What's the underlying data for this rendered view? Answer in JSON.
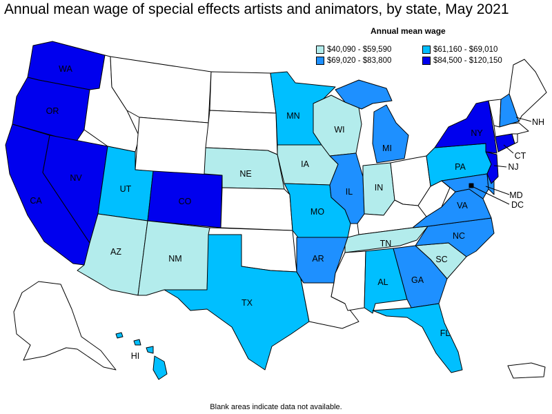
{
  "title": "Annual mean wage of special effects artists and animators, by state, May 2021",
  "legend": {
    "title": "Annual mean wage",
    "items": [
      {
        "label": "$40,090 - $59,590",
        "color": "#b3ecec"
      },
      {
        "label": "$61,160 - $69,010",
        "color": "#00bfff"
      },
      {
        "label": "$69,020 - $83,800",
        "color": "#1e90ff"
      },
      {
        "label": "$84,500 - $120,150",
        "color": "#0000ee"
      }
    ]
  },
  "footnote": "Blank areas indicate data not available.",
  "states": {
    "WA": {
      "tier": 3
    },
    "OR": {
      "tier": 3
    },
    "CA": {
      "tier": 3
    },
    "NV": {
      "tier": 3
    },
    "ID": {
      "tier": null
    },
    "MT": {
      "tier": null
    },
    "WY": {
      "tier": null
    },
    "UT": {
      "tier": 1
    },
    "CO": {
      "tier": 3
    },
    "AZ": {
      "tier": 0
    },
    "NM": {
      "tier": 0
    },
    "ND": {
      "tier": null
    },
    "SD": {
      "tier": null
    },
    "NE": {
      "tier": 0
    },
    "KS": {
      "tier": null
    },
    "OK": {
      "tier": null
    },
    "TX": {
      "tier": 1
    },
    "MN": {
      "tier": 1
    },
    "IA": {
      "tier": 0
    },
    "MO": {
      "tier": 1
    },
    "AR": {
      "tier": 2
    },
    "LA": {
      "tier": null
    },
    "WI": {
      "tier": 0
    },
    "IL": {
      "tier": 2
    },
    "MI": {
      "tier": 2
    },
    "IN": {
      "tier": 0
    },
    "OH": {
      "tier": null
    },
    "KY": {
      "tier": null
    },
    "TN": {
      "tier": 0
    },
    "MS": {
      "tier": null
    },
    "AL": {
      "tier": 1
    },
    "GA": {
      "tier": 2
    },
    "FL": {
      "tier": 1
    },
    "SC": {
      "tier": 0
    },
    "NC": {
      "tier": 2
    },
    "VA": {
      "tier": 2
    },
    "WV": {
      "tier": null
    },
    "PA": {
      "tier": 1
    },
    "NY": {
      "tier": 3
    },
    "NJ": {
      "tier": 3
    },
    "DE": {
      "tier": 2
    },
    "MD": {
      "tier": 2
    },
    "DC": {
      "tier": 3
    },
    "CT": {
      "tier": 3
    },
    "RI": {
      "tier": null
    },
    "MA": {
      "tier": null
    },
    "VT": {
      "tier": null
    },
    "NH": {
      "tier": 2
    },
    "ME": {
      "tier": null
    },
    "AK": {
      "tier": null
    },
    "HI": {
      "tier": 1
    },
    "PR": {
      "tier": null
    }
  },
  "labels": {
    "WA": "WA",
    "OR": "OR",
    "CA": "CA",
    "NV": "NV",
    "UT": "UT",
    "CO": "CO",
    "AZ": "AZ",
    "NM": "NM",
    "NE": "NE",
    "TX": "TX",
    "MN": "MN",
    "IA": "IA",
    "MO": "MO",
    "AR": "AR",
    "WI": "WI",
    "IL": "IL",
    "MI": "MI",
    "IN": "IN",
    "TN": "TN",
    "AL": "AL",
    "GA": "GA",
    "FL": "FL",
    "SC": "SC",
    "NC": "NC",
    "VA": "VA",
    "PA": "PA",
    "NY": "NY",
    "NJ": "NJ",
    "MD": "MD",
    "DC": "DC",
    "CT": "CT",
    "NH": "NH",
    "HI": "HI"
  }
}
